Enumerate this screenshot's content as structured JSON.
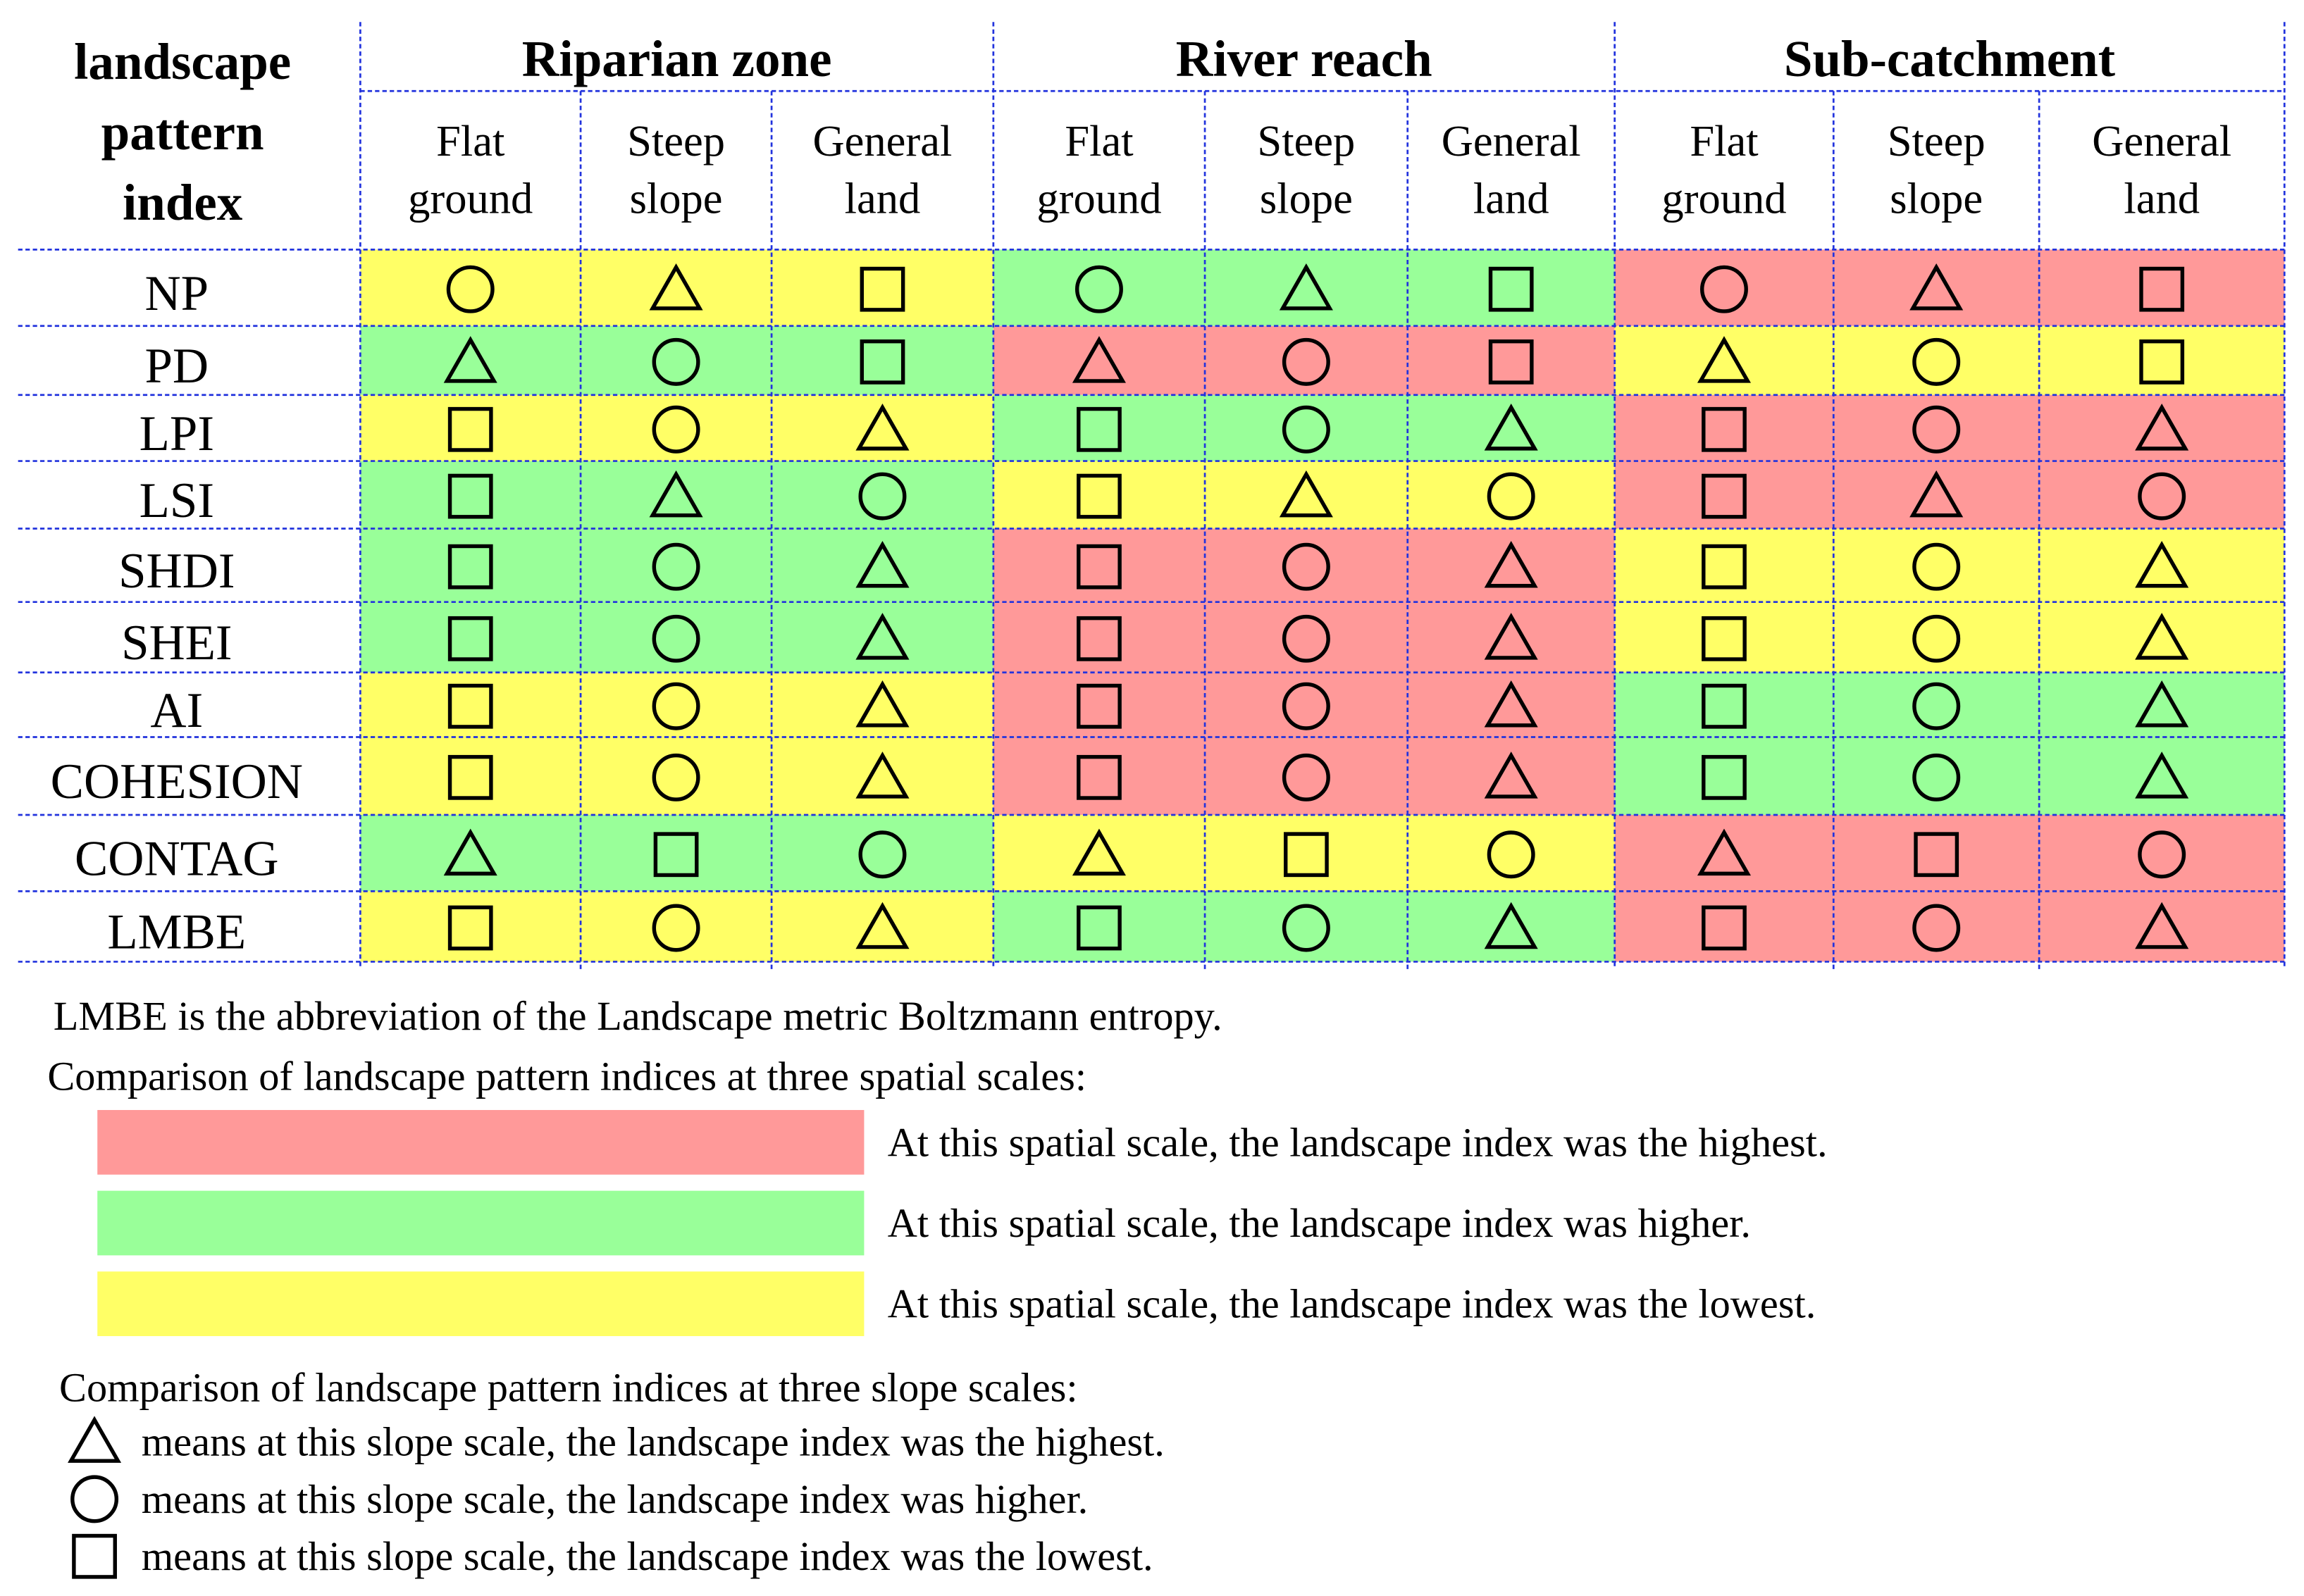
{
  "header": {
    "corner": [
      "landscape",
      "pattern",
      "index"
    ],
    "groups": [
      {
        "title": "Riparian zone",
        "columns": [
          [
            "Flat",
            "ground"
          ],
          [
            "Steep",
            "slope"
          ],
          [
            "General",
            "land"
          ]
        ]
      },
      {
        "title": "River reach",
        "columns": [
          [
            "Flat",
            "ground"
          ],
          [
            "Steep",
            "slope"
          ],
          [
            "General",
            "land"
          ]
        ]
      },
      {
        "title": "Sub-catchment",
        "columns": [
          [
            "Flat",
            "ground"
          ],
          [
            "Steep",
            "slope"
          ],
          [
            "General",
            "land"
          ]
        ]
      }
    ]
  },
  "rows": [
    {
      "label": "NP",
      "colors": [
        "#ffff66",
        "#99ff99",
        "#ff9999"
      ],
      "shapes": [
        "circle",
        "triangle",
        "square",
        "circle",
        "triangle",
        "square",
        "circle",
        "triangle",
        "square"
      ]
    },
    {
      "label": "PD",
      "colors": [
        "#99ff99",
        "#ff9999",
        "#ffff66"
      ],
      "shapes": [
        "triangle",
        "circle",
        "square",
        "triangle",
        "circle",
        "square",
        "triangle",
        "circle",
        "square"
      ]
    },
    {
      "label": "LPI",
      "colors": [
        "#ffff66",
        "#99ff99",
        "#ff9999"
      ],
      "shapes": [
        "square",
        "circle",
        "triangle",
        "square",
        "circle",
        "triangle",
        "square",
        "circle",
        "triangle"
      ]
    },
    {
      "label": "LSI",
      "colors": [
        "#99ff99",
        "#ffff66",
        "#ff9999"
      ],
      "shapes": [
        "square",
        "triangle",
        "circle",
        "square",
        "triangle",
        "circle",
        "square",
        "triangle",
        "circle"
      ]
    },
    {
      "label": "SHDI",
      "colors": [
        "#99ff99",
        "#ff9999",
        "#ffff66"
      ],
      "shapes": [
        "square",
        "circle",
        "triangle",
        "square",
        "circle",
        "triangle",
        "square",
        "circle",
        "triangle"
      ]
    },
    {
      "label": "SHEI",
      "colors": [
        "#99ff99",
        "#ff9999",
        "#ffff66"
      ],
      "shapes": [
        "square",
        "circle",
        "triangle",
        "square",
        "circle",
        "triangle",
        "square",
        "circle",
        "triangle"
      ]
    },
    {
      "label": "AI",
      "colors": [
        "#ffff66",
        "#ff9999",
        "#99ff99"
      ],
      "shapes": [
        "square",
        "circle",
        "triangle",
        "square",
        "circle",
        "triangle",
        "square",
        "circle",
        "triangle"
      ]
    },
    {
      "label": "COHESION",
      "colors": [
        "#ffff66",
        "#ff9999",
        "#99ff99"
      ],
      "shapes": [
        "square",
        "circle",
        "triangle",
        "square",
        "circle",
        "triangle",
        "square",
        "circle",
        "triangle"
      ]
    },
    {
      "label": "CONTAG",
      "colors": [
        "#99ff99",
        "#ffff66",
        "#ff9999"
      ],
      "shapes": [
        "triangle",
        "square",
        "circle",
        "triangle",
        "square",
        "circle",
        "triangle",
        "square",
        "circle"
      ]
    },
    {
      "label": "LMBE",
      "colors": [
        "#ffff66",
        "#99ff99",
        "#ff9999"
      ],
      "shapes": [
        "square",
        "circle",
        "triangle",
        "square",
        "circle",
        "triangle",
        "square",
        "circle",
        "triangle"
      ]
    }
  ],
  "notes": {
    "abbreviation": "LMBE is the abbreviation of  the Landscape metric Boltzmann entropy.",
    "spatial_title": "Comparison of landscape pattern indices at three spatial scales:",
    "spatial_legend": [
      {
        "color": "#ff9999",
        "text": "At this spatial scale, the landscape index was the highest."
      },
      {
        "color": "#99ff99",
        "text": "At this spatial scale, the landscape index was higher."
      },
      {
        "color": "#ffff66",
        "text": "At this spatial scale, the landscape index was the lowest."
      }
    ],
    "slope_title": "Comparison of landscape pattern indices at three slope scales:",
    "slope_legend": [
      {
        "shape": "triangle",
        "text": "means at this slope scale, the landscape index was the highest."
      },
      {
        "shape": "circle",
        "text": "means at this slope scale, the landscape index was higher."
      },
      {
        "shape": "square",
        "text": "means at this slope scale, the landscape index was the lowest."
      }
    ]
  }
}
